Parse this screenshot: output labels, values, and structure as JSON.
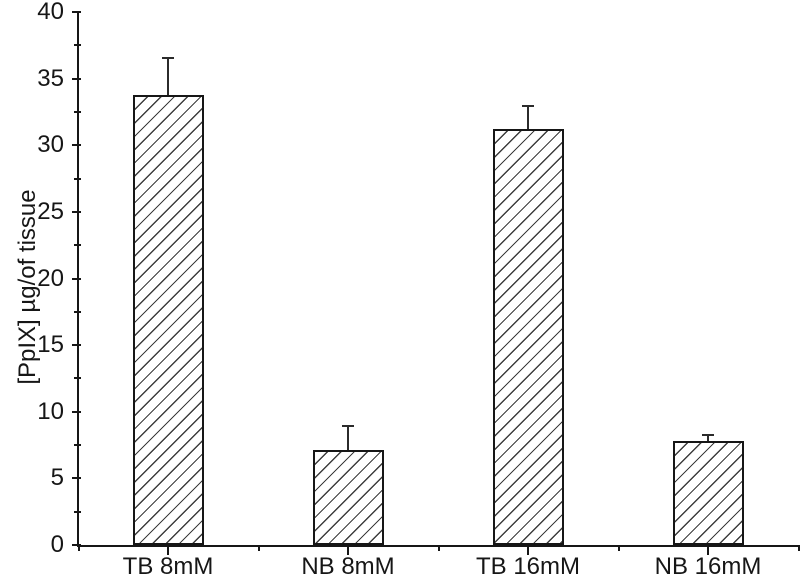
{
  "style": {
    "background": "#ffffff",
    "axis_color": "#161616",
    "text_color": "#161616",
    "hatch_color": "#3d3d3d",
    "error_bar_color": "#2b2b2b",
    "bar_fill": "#ffffff"
  },
  "chart_data": {
    "type": "bar",
    "title": "",
    "xlabel": "",
    "ylabel": "[PpIX] µg/of tissue",
    "categories": [
      "TB 8mM",
      "NB 8mM",
      "TB 16mM",
      "NB 16mM"
    ],
    "values": [
      33.8,
      7.1,
      31.2,
      7.8
    ],
    "errors_upper": [
      2.8,
      1.9,
      1.8,
      0.5
    ],
    "ylim": [
      0,
      40
    ],
    "y_major_tick_step": 5,
    "y_minor_tick_step": 2.5,
    "y_tick_labels": [
      "0",
      "5",
      "10",
      "15",
      "20",
      "25",
      "30",
      "35",
      "40"
    ],
    "bar_hatch": "diagonal-forward",
    "error_bars": "upper-with-cap",
    "grid": false,
    "legend": "none"
  }
}
